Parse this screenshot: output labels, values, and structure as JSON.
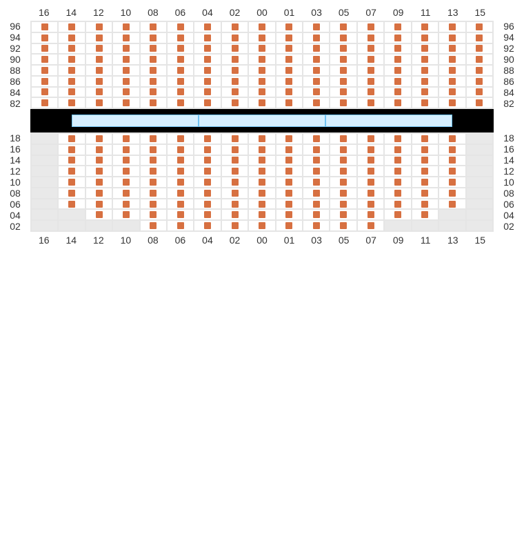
{
  "columns": [
    "16",
    "14",
    "12",
    "10",
    "08",
    "06",
    "04",
    "02",
    "00",
    "01",
    "03",
    "05",
    "07",
    "09",
    "11",
    "13",
    "15"
  ],
  "upper": {
    "row_labels": [
      "96",
      "94",
      "92",
      "90",
      "88",
      "86",
      "84",
      "82"
    ],
    "rows": [
      [
        1,
        1,
        1,
        1,
        1,
        1,
        1,
        1,
        1,
        1,
        1,
        1,
        1,
        1,
        1,
        1,
        1
      ],
      [
        1,
        1,
        1,
        1,
        1,
        1,
        1,
        1,
        1,
        1,
        1,
        1,
        1,
        1,
        1,
        1,
        1
      ],
      [
        1,
        1,
        1,
        1,
        1,
        1,
        1,
        1,
        1,
        1,
        1,
        1,
        1,
        1,
        1,
        1,
        1
      ],
      [
        1,
        1,
        1,
        1,
        1,
        1,
        1,
        1,
        1,
        1,
        1,
        1,
        1,
        1,
        1,
        1,
        1
      ],
      [
        1,
        1,
        1,
        1,
        1,
        1,
        1,
        1,
        1,
        1,
        1,
        1,
        1,
        1,
        1,
        1,
        1
      ],
      [
        1,
        1,
        1,
        1,
        1,
        1,
        1,
        1,
        1,
        1,
        1,
        1,
        1,
        1,
        1,
        1,
        1
      ],
      [
        1,
        1,
        1,
        1,
        1,
        1,
        1,
        1,
        1,
        1,
        1,
        1,
        1,
        1,
        1,
        1,
        1
      ],
      [
        1,
        1,
        1,
        1,
        1,
        1,
        1,
        1,
        1,
        1,
        1,
        1,
        1,
        1,
        1,
        1,
        1
      ]
    ]
  },
  "lower": {
    "row_labels": [
      "18",
      "16",
      "14",
      "12",
      "10",
      "08",
      "06",
      "04",
      "02"
    ],
    "rows": [
      [
        0,
        1,
        1,
        1,
        1,
        1,
        1,
        1,
        1,
        1,
        1,
        1,
        1,
        1,
        1,
        1,
        0
      ],
      [
        0,
        1,
        1,
        1,
        1,
        1,
        1,
        1,
        1,
        1,
        1,
        1,
        1,
        1,
        1,
        1,
        0
      ],
      [
        0,
        1,
        1,
        1,
        1,
        1,
        1,
        1,
        1,
        1,
        1,
        1,
        1,
        1,
        1,
        1,
        0
      ],
      [
        0,
        1,
        1,
        1,
        1,
        1,
        1,
        1,
        1,
        1,
        1,
        1,
        1,
        1,
        1,
        1,
        0
      ],
      [
        0,
        1,
        1,
        1,
        1,
        1,
        1,
        1,
        1,
        1,
        1,
        1,
        1,
        1,
        1,
        1,
        0
      ],
      [
        0,
        1,
        1,
        1,
        1,
        1,
        1,
        1,
        1,
        1,
        1,
        1,
        1,
        1,
        1,
        1,
        0
      ],
      [
        0,
        1,
        1,
        1,
        1,
        1,
        1,
        1,
        1,
        1,
        1,
        1,
        1,
        1,
        1,
        1,
        0
      ],
      [
        0,
        0,
        1,
        1,
        1,
        1,
        1,
        1,
        1,
        1,
        1,
        1,
        1,
        1,
        1,
        0,
        0
      ],
      [
        0,
        0,
        0,
        0,
        1,
        1,
        1,
        1,
        1,
        1,
        1,
        1,
        1,
        0,
        0,
        0,
        0
      ]
    ]
  },
  "style": {
    "seat_color": "#d77041",
    "empty_bg": "#e9e9e9",
    "grid_border": "#e5e5e5",
    "stage_bg": "#000000",
    "stage_seg_bg": "#d6efff",
    "stage_seg_border": "#6fc3f5",
    "stage_segments": 3,
    "label_color": "#333333",
    "upper_row_height": 37,
    "lower_row_height": 40,
    "seat_size": 10
  }
}
